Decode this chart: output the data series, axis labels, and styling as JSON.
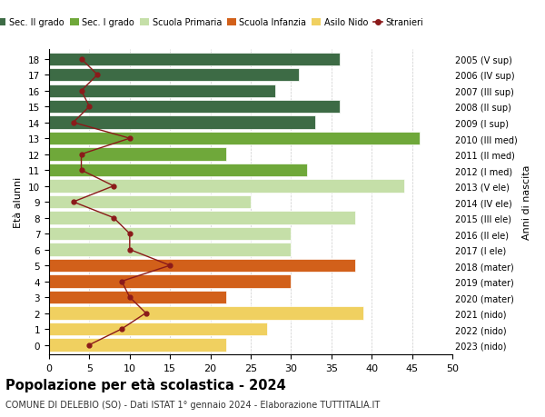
{
  "ages": [
    18,
    17,
    16,
    15,
    14,
    13,
    12,
    11,
    10,
    9,
    8,
    7,
    6,
    5,
    4,
    3,
    2,
    1,
    0
  ],
  "anni_labels": [
    "2005 (V sup)",
    "2006 (IV sup)",
    "2007 (III sup)",
    "2008 (II sup)",
    "2009 (I sup)",
    "2010 (III med)",
    "2011 (II med)",
    "2012 (I med)",
    "2013 (V ele)",
    "2014 (IV ele)",
    "2015 (III ele)",
    "2016 (II ele)",
    "2017 (I ele)",
    "2018 (mater)",
    "2019 (mater)",
    "2020 (mater)",
    "2021 (nido)",
    "2022 (nido)",
    "2023 (nido)"
  ],
  "bar_values": [
    36,
    31,
    28,
    36,
    33,
    46,
    22,
    32,
    44,
    25,
    38,
    30,
    30,
    38,
    30,
    22,
    39,
    27,
    22
  ],
  "stranieri": [
    4,
    6,
    4,
    5,
    3,
    10,
    4,
    4,
    8,
    3,
    8,
    10,
    10,
    15,
    9,
    10,
    12,
    9,
    5
  ],
  "bar_colors": [
    "#3d6b45",
    "#3d6b45",
    "#3d6b45",
    "#3d6b45",
    "#3d6b45",
    "#6fa83a",
    "#6fa83a",
    "#6fa83a",
    "#c5dfa8",
    "#c5dfa8",
    "#c5dfa8",
    "#c5dfa8",
    "#c5dfa8",
    "#d2601a",
    "#d2601a",
    "#d2601a",
    "#f0d060",
    "#f0d060",
    "#f0d060"
  ],
  "stranieri_color": "#8b1a1a",
  "legend_labels": [
    "Sec. II grado",
    "Sec. I grado",
    "Scuola Primaria",
    "Scuola Infanzia",
    "Asilo Nido",
    "Stranieri"
  ],
  "legend_colors": [
    "#3d6b45",
    "#6fa83a",
    "#c5dfa8",
    "#d2601a",
    "#f0d060",
    "#8b1a1a"
  ],
  "ylabel_left": "Età alunni",
  "ylabel_right": "Anni di nascita",
  "title": "Popolazione per età scolastica - 2024",
  "subtitle": "COMUNE DI DELEBIO (SO) - Dati ISTAT 1° gennaio 2024 - Elaborazione TUTTITALIA.IT",
  "xlim": [
    0,
    50
  ],
  "bg_color": "#ffffff",
  "grid_color": "#cccccc"
}
